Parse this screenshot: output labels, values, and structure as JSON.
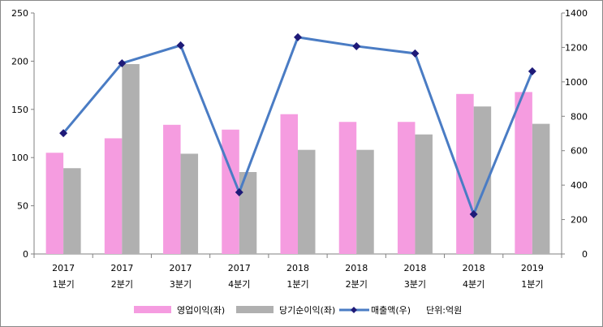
{
  "chart_data": {
    "type": "bar",
    "categories": [
      [
        "2017",
        "1분기"
      ],
      [
        "2017",
        "2분기"
      ],
      [
        "2017",
        "3분기"
      ],
      [
        "2017",
        "4분기"
      ],
      [
        "2018",
        "1분기"
      ],
      [
        "2018",
        "2분기"
      ],
      [
        "2018",
        "3분기"
      ],
      [
        "2018",
        "4분기"
      ],
      [
        "2019",
        "1분기"
      ]
    ],
    "series": [
      {
        "name": "영업이익(좌)",
        "type": "bar",
        "axis": "left",
        "color": "#F59CE0",
        "values": [
          105,
          120,
          134,
          129,
          145,
          137,
          137,
          166,
          168
        ]
      },
      {
        "name": "당기순이익(좌)",
        "type": "bar",
        "axis": "left",
        "color": "#B0B0B0",
        "values": [
          89,
          197,
          104,
          85,
          108,
          108,
          124,
          153,
          135
        ]
      },
      {
        "name": "매출액(우)",
        "type": "line",
        "axis": "right",
        "color": "#4A7CC4",
        "marker_color": "#1E1A78",
        "values": [
          702,
          1108,
          1212,
          358,
          1259,
          1207,
          1165,
          231,
          1061
        ]
      }
    ],
    "y_left": {
      "range": [
        0,
        250
      ],
      "ticks": [
        0,
        50,
        100,
        150,
        200,
        250
      ]
    },
    "y_right": {
      "range": [
        0,
        1400
      ],
      "ticks": [
        0,
        200,
        400,
        600,
        800,
        1000,
        1200,
        1400
      ]
    },
    "unit_note": "단위:억원",
    "legend_position": "bottom",
    "grid": false
  }
}
